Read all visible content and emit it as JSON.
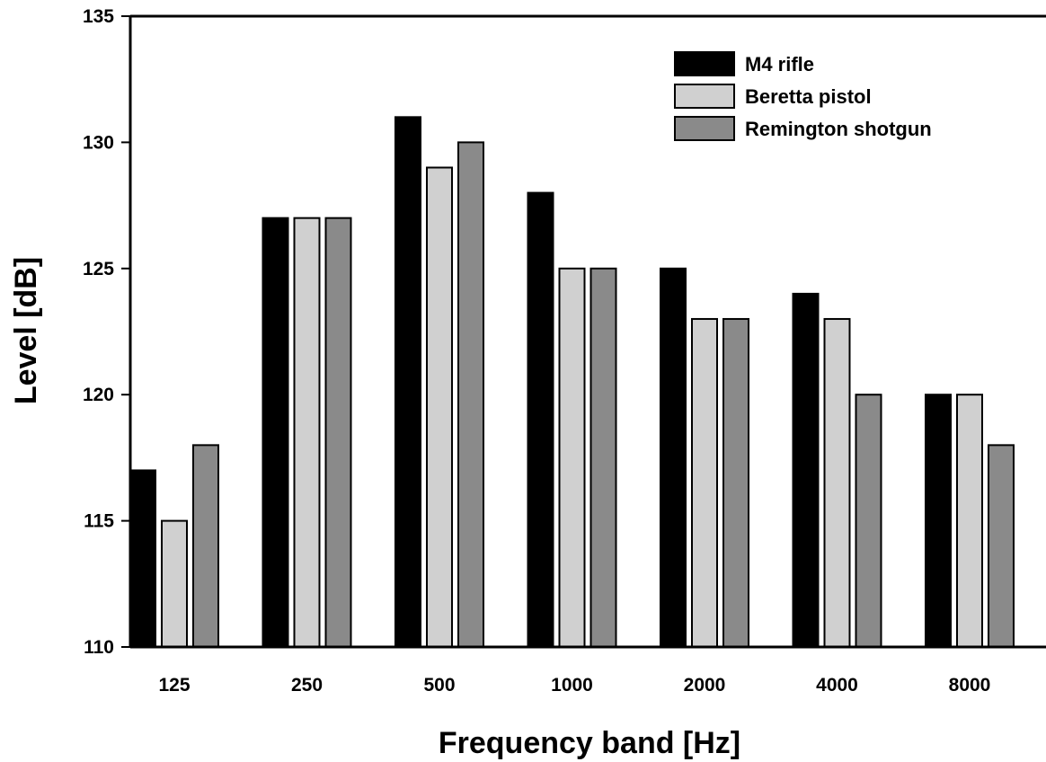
{
  "chart_data": {
    "type": "bar",
    "xlabel": "Frequency band [Hz]",
    "ylabel": "Level [dB]",
    "ylim": [
      110,
      135
    ],
    "yticks": [
      110,
      115,
      120,
      125,
      130,
      135
    ],
    "categories": [
      "125",
      "250",
      "500",
      "1000",
      "2000",
      "4000",
      "8000"
    ],
    "series": [
      {
        "name": "M4 rifle",
        "color": "#000000",
        "values": [
          117,
          127,
          131,
          128,
          125,
          124,
          120
        ]
      },
      {
        "name": "Beretta pistol",
        "color": "#d0d0d0",
        "values": [
          115,
          127,
          129,
          125,
          123,
          123,
          120
        ]
      },
      {
        "name": "Remington shotgun",
        "color": "#8a8a8a",
        "values": [
          118,
          127,
          130,
          125,
          123,
          120,
          118
        ]
      }
    ],
    "grid": false,
    "legend_position": "top-right"
  }
}
